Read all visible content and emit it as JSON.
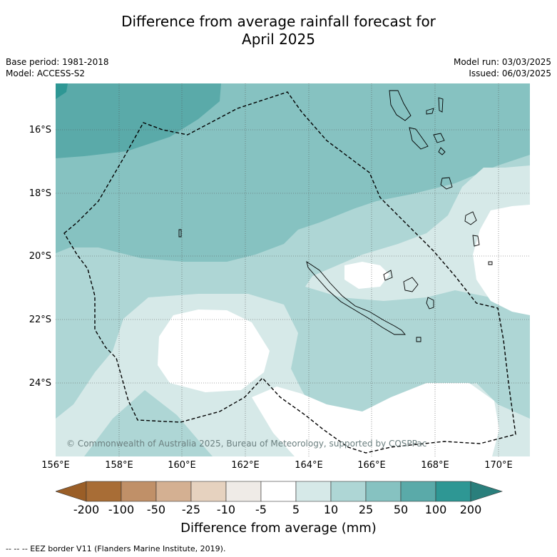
{
  "title_line1": "Difference from average rainfall forecast for",
  "title_line2": "April 2025",
  "base_period": "Base period: 1981-2018",
  "model": "Model: ACCESS-S2",
  "model_run": "Model run: 03/03/2025",
  "issued": "Issued: 06/03/2025",
  "copyright": "© Commonwealth of Australia 2025, Bureau of Meteorology, supported by COSPPac",
  "lat_labels": [
    "16°S",
    "18°S",
    "20°S",
    "22°S",
    "24°S"
  ],
  "lon_labels": [
    "156°E",
    "158°E",
    "160°E",
    "162°E",
    "164°E",
    "166°E",
    "168°E",
    "170°E"
  ],
  "colorbar": {
    "labels": [
      "-200",
      "-100",
      "-50",
      "-25",
      "-10",
      "-5",
      "5",
      "10",
      "25",
      "50",
      "100",
      "200"
    ],
    "colors": [
      "#a86d36",
      "#c09068",
      "#d4b092",
      "#e6d2bf",
      "#efebe7",
      "#ffffff",
      "#d6e9e8",
      "#aed6d5",
      "#86c2c1",
      "#5aaaa9",
      "#2e9794"
    ],
    "under_color": "#9a5e27",
    "over_color": "#2a7f7c",
    "title": "Difference from average (mm)"
  },
  "footnote": "--  --  -- EEZ border V11 (Flanders Marine Institute, 2019).",
  "colors": {
    "c5_10": "#d6e9e8",
    "c10_25": "#aed6d5",
    "c25_50": "#86c2c1",
    "c50_100": "#5aaaa9",
    "c100_200": "#2e9794"
  }
}
